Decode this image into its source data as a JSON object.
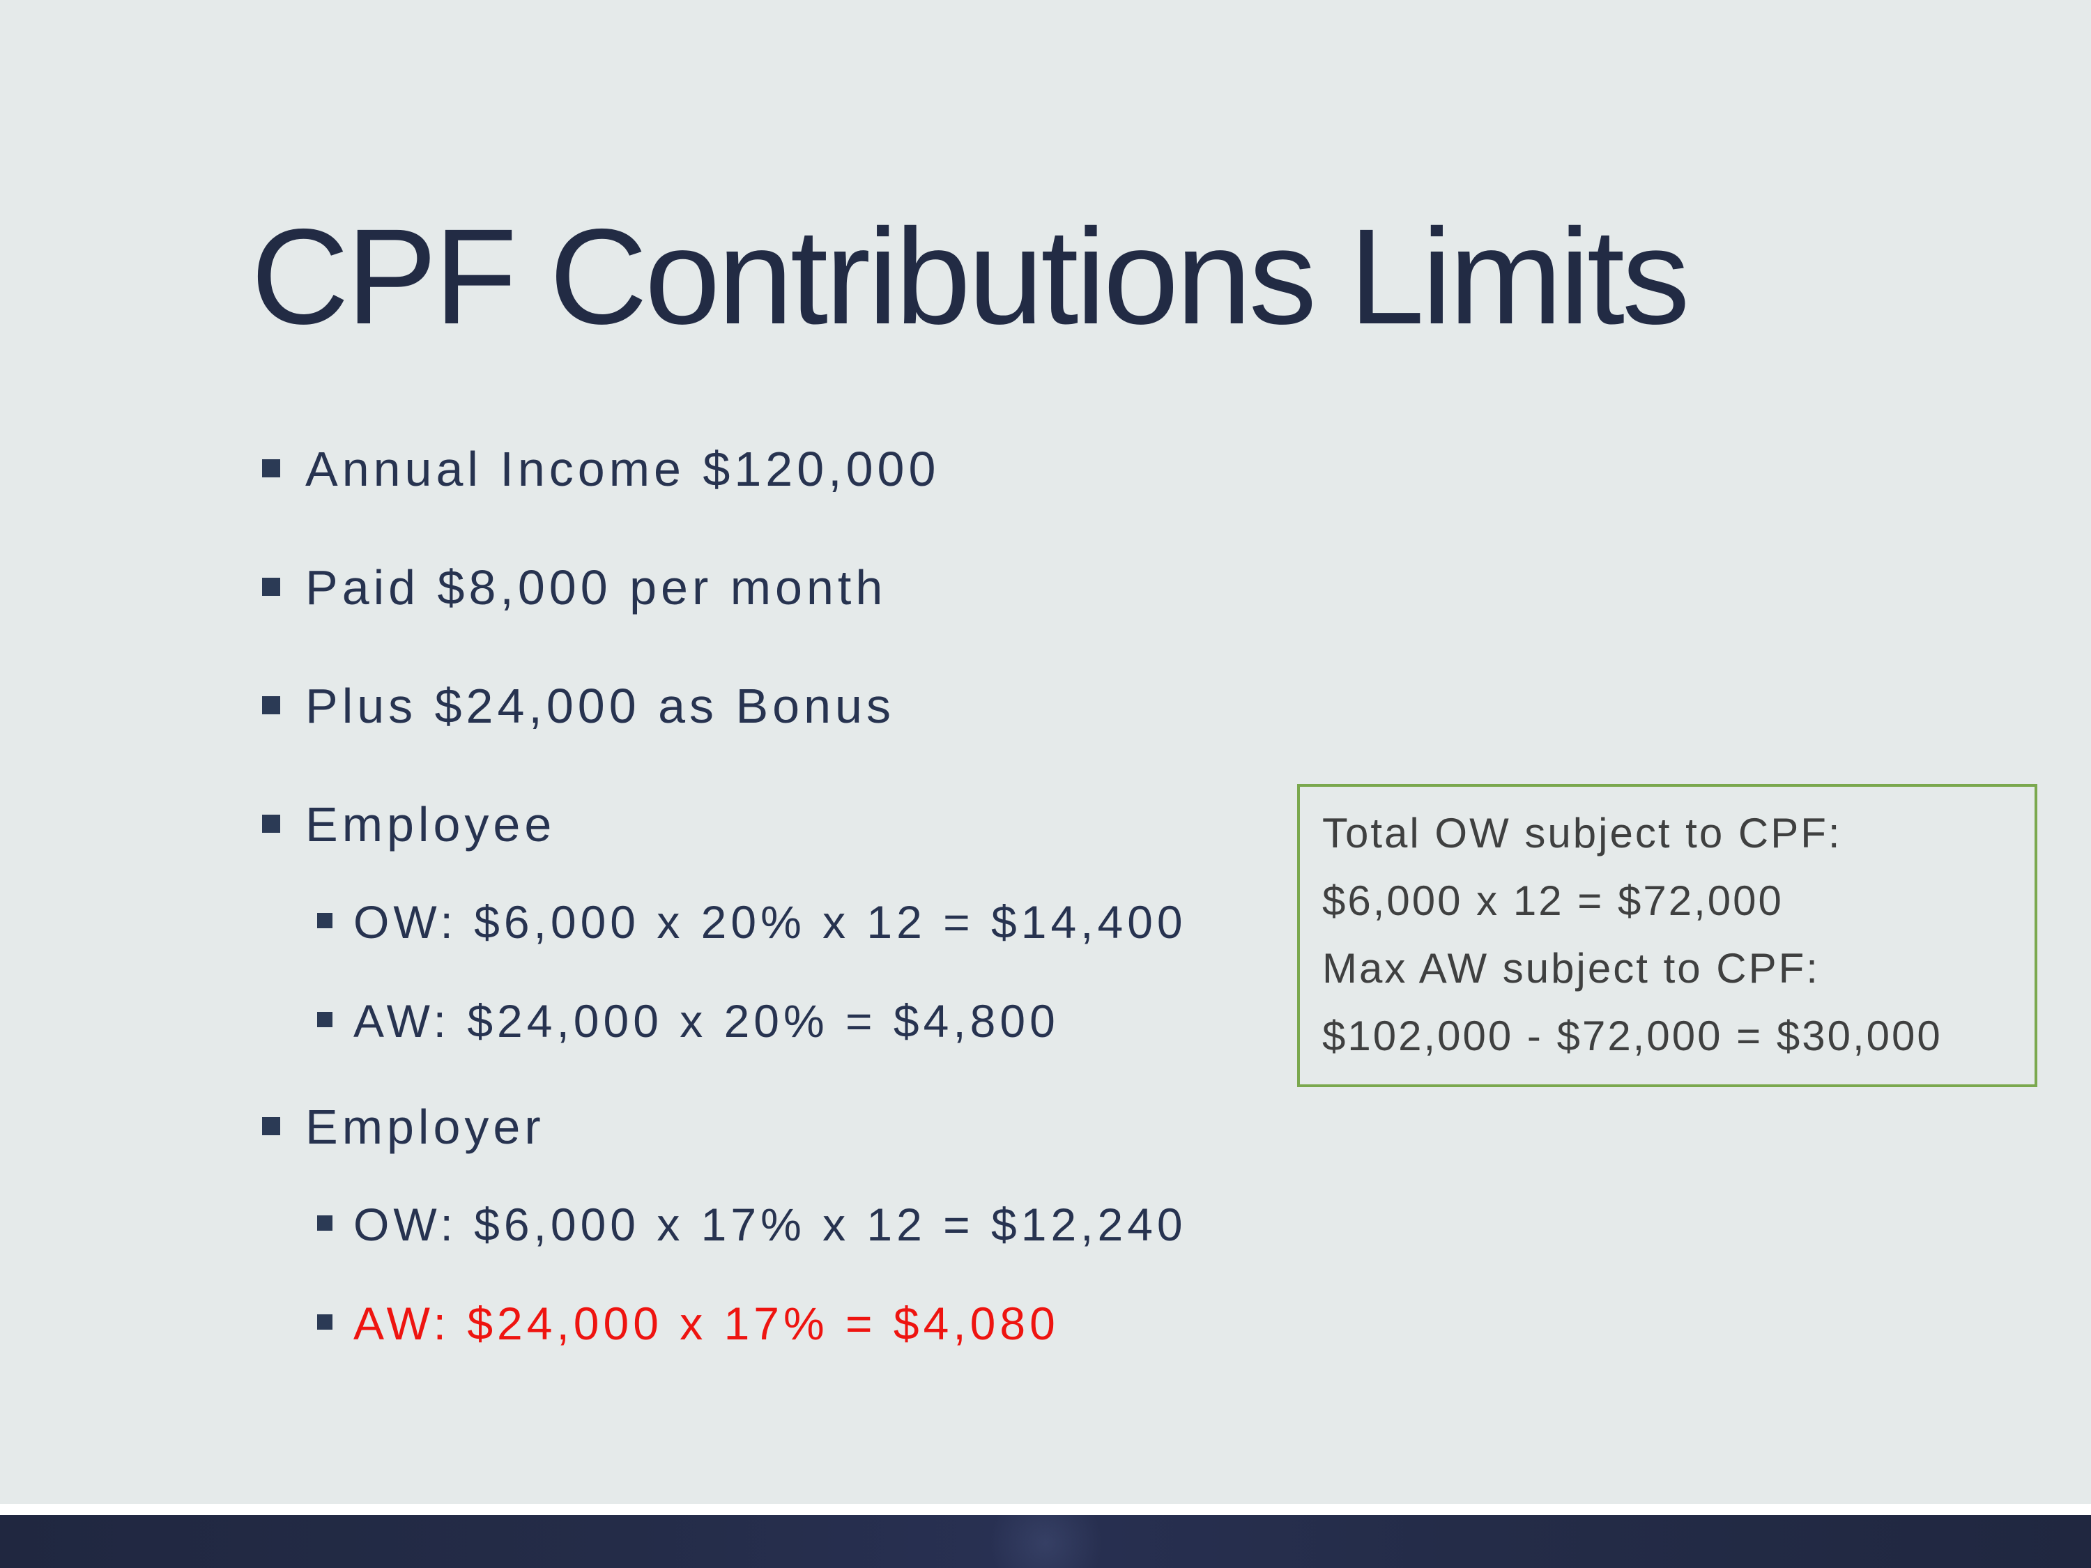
{
  "slide": {
    "title": "CPF Contributions Limits",
    "bullets": [
      {
        "level": 1,
        "text": "Annual Income $120,000"
      },
      {
        "level": 1,
        "text": "Paid $8,000 per month"
      },
      {
        "level": 1,
        "text": "Plus $24,000 as Bonus"
      },
      {
        "level": 1,
        "text": "Employee",
        "has_children": true
      },
      {
        "level": 2,
        "text": "OW: $6,000 x 20% x 12 = $14,400"
      },
      {
        "level": 2,
        "text": "AW: $24,000 x 20% = $4,800",
        "before_l1": true
      },
      {
        "level": 1,
        "text": "Employer",
        "has_children": true
      },
      {
        "level": 2,
        "text": "OW: $6,000 x 17% x 12 = $12,240"
      },
      {
        "level": 2,
        "text": "AW: $24,000 x 17% = $4,080",
        "emphasis": "red"
      }
    ],
    "callout": {
      "lines": [
        "Total OW subject to CPF:",
        "$6,000 x 12 = $72,000",
        "Max AW subject to CPF:",
        "$102,000 - $72,000 = $30,000"
      ]
    },
    "colors": {
      "background": "#e5eaea",
      "title_navy": "#222b44",
      "body_navy": "#273350",
      "bullet_marker_navy": "#2b3a55",
      "emphasis_red": "#ee1410",
      "callout_border_green": "#7aa84e",
      "callout_text_gray": "#3f4040",
      "footer_bar_navy": "#242c48",
      "footer_strip_white": "#ffffff"
    }
  }
}
